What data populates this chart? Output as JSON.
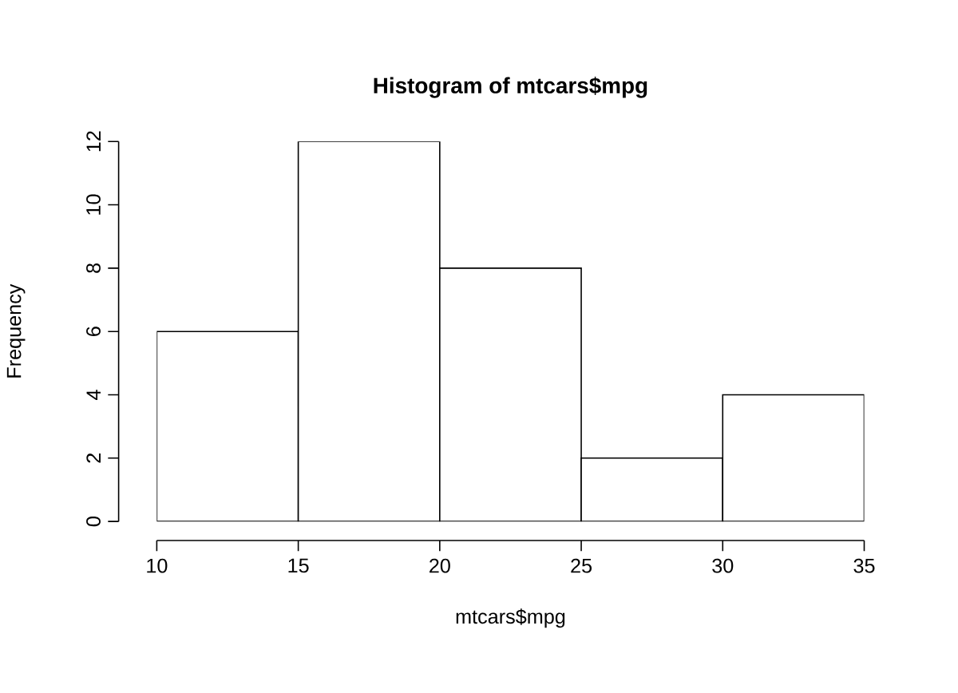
{
  "chart_data": {
    "type": "histogram",
    "title": "Histogram of mtcars$mpg",
    "xlabel": "mtcars$mpg",
    "ylabel": "Frequency",
    "bins": [
      10,
      15,
      20,
      25,
      30,
      35
    ],
    "values": [
      6,
      12,
      8,
      2,
      4
    ],
    "color": "#ffffff",
    "xlim": [
      10,
      35
    ],
    "ylim": [
      0,
      12
    ],
    "xticks": [
      10,
      15,
      20,
      25,
      30,
      35
    ],
    "yticks": [
      0,
      2,
      4,
      6,
      8,
      10,
      12
    ]
  }
}
